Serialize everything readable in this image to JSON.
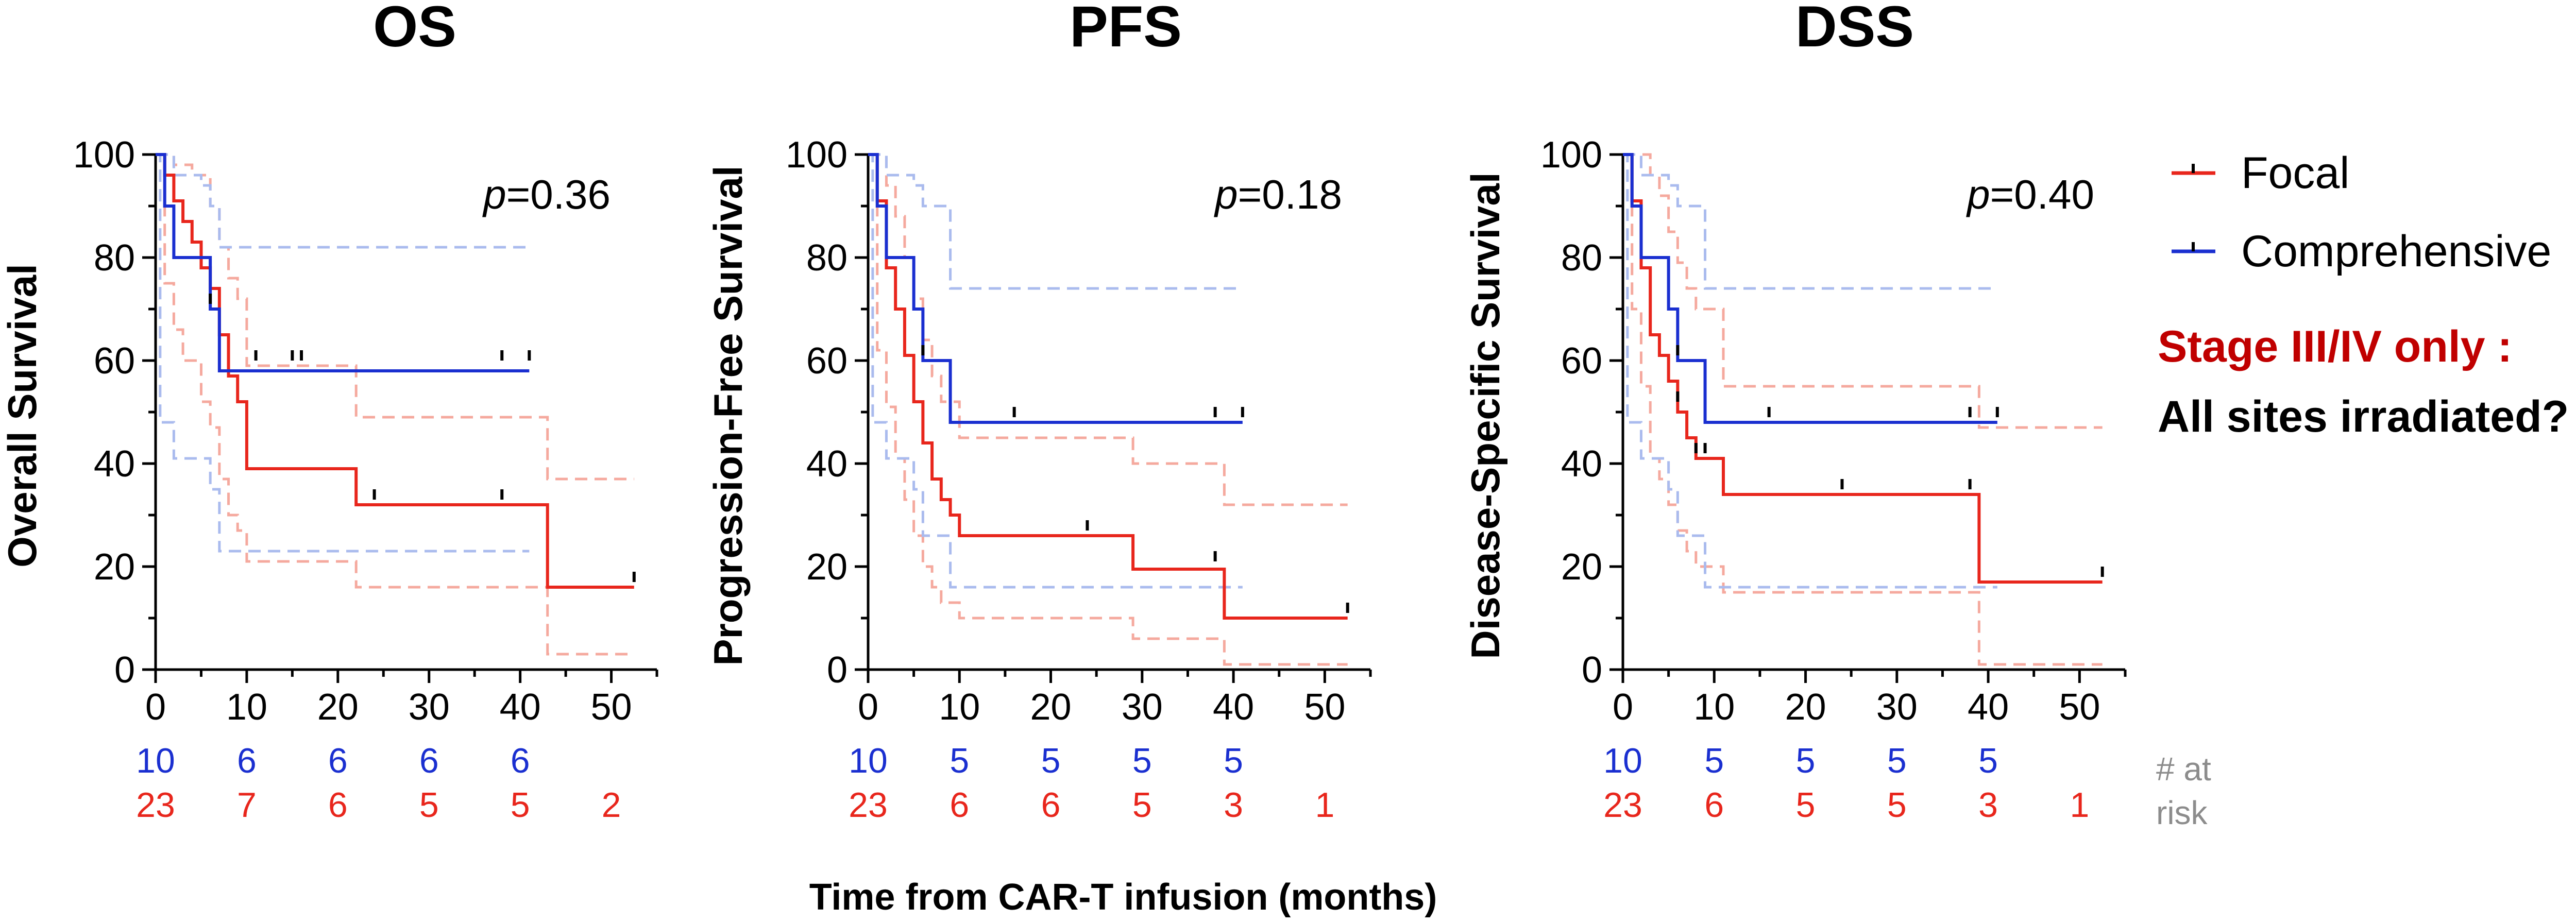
{
  "figure": {
    "x_axis_title": "Time from CAR-T infusion (months)",
    "at_risk_label_line1": "# at",
    "at_risk_label_line2": "risk",
    "legend": {
      "focal_label": "Focal",
      "comprehensive_label": "Comprehensive",
      "focal_color": "#e8261c",
      "comprehensive_color": "#1a2fd0"
    },
    "annotation": {
      "line1": "Stage III/IV only :",
      "line2": "All sites irradiated?",
      "line1_color": "#c00000",
      "line2_color": "#000000"
    }
  },
  "chart_data": [
    {
      "type": "line",
      "title": "OS",
      "ylabel": "Overall Survival",
      "xlabel": "Time from CAR-T infusion (months)",
      "p_prefix": "p",
      "p_value": "=0.36",
      "xlim": [
        0,
        55
      ],
      "ylim": [
        0,
        100
      ],
      "x_ticks": [
        0,
        10,
        20,
        30,
        40,
        50
      ],
      "y_ticks": [
        0,
        20,
        40,
        60,
        80,
        100
      ],
      "series": [
        {
          "name": "Focal",
          "color": "#e8261c",
          "steps": [
            [
              0,
              100
            ],
            [
              1,
              96
            ],
            [
              2,
              91
            ],
            [
              3,
              87
            ],
            [
              4,
              83
            ],
            [
              5,
              78
            ],
            [
              6,
              74
            ],
            [
              7,
              65
            ],
            [
              8,
              57
            ],
            [
              9,
              52
            ],
            [
              10,
              39
            ],
            [
              22,
              32
            ],
            [
              43,
              32
            ],
            [
              43,
              16
            ],
            [
              52.5,
              16
            ]
          ],
          "censored": [
            [
              24,
              33
            ],
            [
              38,
              33
            ],
            [
              52.5,
              17
            ]
          ],
          "ci_lower": [
            [
              0,
              100
            ],
            [
              1,
              75
            ],
            [
              2,
              66
            ],
            [
              3,
              60
            ],
            [
              5,
              52
            ],
            [
              6,
              47
            ],
            [
              7,
              37
            ],
            [
              8,
              30
            ],
            [
              9,
              27
            ],
            [
              10,
              21
            ],
            [
              22,
              16
            ],
            [
              43,
              16
            ],
            [
              43,
              3
            ],
            [
              52.5,
              3
            ]
          ],
          "ci_upper": [
            [
              0,
              100
            ],
            [
              2,
              98
            ],
            [
              4,
              96
            ],
            [
              6,
              90
            ],
            [
              7,
              82
            ],
            [
              8,
              76
            ],
            [
              9,
              72
            ],
            [
              10,
              59
            ],
            [
              22,
              49
            ],
            [
              43,
              49
            ],
            [
              43,
              37
            ],
            [
              52.5,
              37
            ]
          ]
        },
        {
          "name": "Comprehensive",
          "color": "#1a2fd0",
          "steps": [
            [
              0,
              100
            ],
            [
              1,
              90
            ],
            [
              2,
              80
            ],
            [
              6,
              70
            ],
            [
              7,
              58
            ],
            [
              41,
              58
            ]
          ],
          "censored": [
            [
              6,
              71
            ],
            [
              11,
              60
            ],
            [
              15,
              60
            ],
            [
              16,
              60
            ],
            [
              38,
              60
            ],
            [
              41,
              60
            ]
          ],
          "ci_lower": [
            [
              0,
              100
            ],
            [
              0.5,
              48
            ],
            [
              2,
              41
            ],
            [
              6,
              35
            ],
            [
              7,
              23
            ],
            [
              41,
              23
            ]
          ],
          "ci_upper": [
            [
              0,
              100
            ],
            [
              2,
              96
            ],
            [
              5,
              94
            ],
            [
              6,
              90
            ],
            [
              7,
              82
            ],
            [
              41,
              82
            ]
          ]
        }
      ],
      "at_risk_times": [
        0,
        10,
        20,
        30,
        40,
        50
      ],
      "at_risk": {
        "comprehensive": [
          "10",
          "6",
          "6",
          "6",
          "6",
          ""
        ],
        "focal": [
          "23",
          "7",
          "6",
          "5",
          "5",
          "2"
        ]
      }
    },
    {
      "type": "line",
      "title": "PFS",
      "ylabel": "Progression-Free Survival",
      "xlabel": "Time from CAR-T infusion (months)",
      "p_prefix": "p",
      "p_value": "=0.18",
      "xlim": [
        0,
        55
      ],
      "ylim": [
        0,
        100
      ],
      "x_ticks": [
        0,
        10,
        20,
        30,
        40,
        50
      ],
      "y_ticks": [
        0,
        20,
        40,
        60,
        80,
        100
      ],
      "series": [
        {
          "name": "Focal",
          "color": "#e8261c",
          "steps": [
            [
              0,
              100
            ],
            [
              1,
              91
            ],
            [
              2,
              78
            ],
            [
              3,
              70
            ],
            [
              4,
              61
            ],
            [
              5,
              52
            ],
            [
              6,
              44
            ],
            [
              7,
              37
            ],
            [
              8,
              33
            ],
            [
              9,
              30
            ],
            [
              10,
              26
            ],
            [
              29,
              26
            ],
            [
              29,
              19.5
            ],
            [
              39,
              19.5
            ],
            [
              39,
              10
            ],
            [
              52.5,
              10
            ]
          ],
          "censored": [
            [
              24,
              27
            ],
            [
              38,
              21
            ],
            [
              52.5,
              11
            ]
          ],
          "ci_lower": [
            [
              0,
              100
            ],
            [
              1,
              62
            ],
            [
              2,
              51
            ],
            [
              3,
              41
            ],
            [
              4,
              33
            ],
            [
              5,
              26
            ],
            [
              6,
              20
            ],
            [
              7,
              16
            ],
            [
              8,
              13
            ],
            [
              10,
              10
            ],
            [
              29,
              10
            ],
            [
              29,
              6
            ],
            [
              39,
              6
            ],
            [
              39,
              1
            ],
            [
              52.5,
              1
            ]
          ],
          "ci_upper": [
            [
              0,
              100
            ],
            [
              2,
              94
            ],
            [
              3,
              88
            ],
            [
              4,
              80
            ],
            [
              5,
              72
            ],
            [
              6,
              64
            ],
            [
              7,
              57
            ],
            [
              8,
              52
            ],
            [
              10,
              45
            ],
            [
              29,
              45
            ],
            [
              29,
              40
            ],
            [
              39,
              40
            ],
            [
              39,
              32
            ],
            [
              52.5,
              32
            ]
          ]
        },
        {
          "name": "Comprehensive",
          "color": "#1a2fd0",
          "steps": [
            [
              0,
              100
            ],
            [
              1,
              90
            ],
            [
              2,
              80
            ],
            [
              5,
              70
            ],
            [
              6,
              60
            ],
            [
              9,
              48
            ],
            [
              41,
              48
            ]
          ],
          "censored": [
            [
              6,
              61
            ],
            [
              16,
              49
            ],
            [
              38,
              49
            ],
            [
              41,
              49
            ]
          ],
          "ci_lower": [
            [
              0,
              100
            ],
            [
              0.5,
              48
            ],
            [
              2,
              41
            ],
            [
              5,
              35
            ],
            [
              6,
              26
            ],
            [
              9,
              16
            ],
            [
              41,
              16
            ]
          ],
          "ci_upper": [
            [
              0,
              100
            ],
            [
              2,
              96
            ],
            [
              5,
              94
            ],
            [
              6,
              90
            ],
            [
              9,
              74
            ],
            [
              41,
              74
            ]
          ]
        }
      ],
      "at_risk_times": [
        0,
        10,
        20,
        30,
        40,
        50
      ],
      "at_risk": {
        "comprehensive": [
          "10",
          "5",
          "5",
          "5",
          "5",
          ""
        ],
        "focal": [
          "23",
          "6",
          "6",
          "5",
          "3",
          "1"
        ]
      }
    },
    {
      "type": "line",
      "title": "DSS",
      "ylabel": "Disease-Specific Survival",
      "xlabel": "Time from CAR-T infusion (months)",
      "p_prefix": "p",
      "p_value": "=0.40",
      "xlim": [
        0,
        55
      ],
      "ylim": [
        0,
        100
      ],
      "x_ticks": [
        0,
        10,
        20,
        30,
        40,
        50
      ],
      "y_ticks": [
        0,
        20,
        40,
        60,
        80,
        100
      ],
      "series": [
        {
          "name": "Focal",
          "color": "#e8261c",
          "steps": [
            [
              0,
              100
            ],
            [
              1,
              91
            ],
            [
              2,
              78
            ],
            [
              3,
              65
            ],
            [
              4,
              61
            ],
            [
              5,
              56
            ],
            [
              6,
              50
            ],
            [
              7,
              45
            ],
            [
              8,
              41
            ],
            [
              11,
              34
            ],
            [
              39,
              34
            ],
            [
              39,
              17
            ],
            [
              52.5,
              17
            ]
          ],
          "censored": [
            [
              6,
              52
            ],
            [
              8,
              42
            ],
            [
              9,
              42
            ],
            [
              24,
              35
            ],
            [
              38,
              35
            ],
            [
              52.5,
              18
            ]
          ],
          "ci_lower": [
            [
              0,
              100
            ],
            [
              1,
              70
            ],
            [
              2,
              55
            ],
            [
              3,
              41
            ],
            [
              4,
              37
            ],
            [
              5,
              32
            ],
            [
              6,
              27
            ],
            [
              7,
              23
            ],
            [
              8,
              20
            ],
            [
              11,
              15
            ],
            [
              39,
              15
            ],
            [
              39,
              1
            ],
            [
              52.5,
              1
            ]
          ],
          "ci_upper": [
            [
              0,
              100
            ],
            [
              3,
              96
            ],
            [
              4,
              92
            ],
            [
              5,
              85
            ],
            [
              6,
              79
            ],
            [
              7,
              74
            ],
            [
              8,
              70
            ],
            [
              11,
              55
            ],
            [
              39,
              55
            ],
            [
              39,
              47
            ],
            [
              52.5,
              47
            ]
          ]
        },
        {
          "name": "Comprehensive",
          "color": "#1a2fd0",
          "steps": [
            [
              0,
              100
            ],
            [
              1,
              90
            ],
            [
              2,
              80
            ],
            [
              5,
              70
            ],
            [
              6,
              60
            ],
            [
              9,
              48
            ],
            [
              41,
              48
            ]
          ],
          "censored": [
            [
              6,
              61
            ],
            [
              16,
              49
            ],
            [
              38,
              49
            ],
            [
              41,
              49
            ]
          ],
          "ci_lower": [
            [
              0,
              100
            ],
            [
              0.5,
              48
            ],
            [
              2,
              41
            ],
            [
              5,
              35
            ],
            [
              6,
              26
            ],
            [
              9,
              16
            ],
            [
              41,
              16
            ]
          ],
          "ci_upper": [
            [
              0,
              100
            ],
            [
              2,
              96
            ],
            [
              5,
              94
            ],
            [
              6,
              90
            ],
            [
              9,
              74
            ],
            [
              41,
              74
            ]
          ]
        }
      ],
      "at_risk_times": [
        0,
        10,
        20,
        30,
        40,
        50
      ],
      "at_risk": {
        "comprehensive": [
          "10",
          "5",
          "5",
          "5",
          "5",
          ""
        ],
        "focal": [
          "23",
          "6",
          "5",
          "5",
          "3",
          "1"
        ]
      }
    }
  ]
}
